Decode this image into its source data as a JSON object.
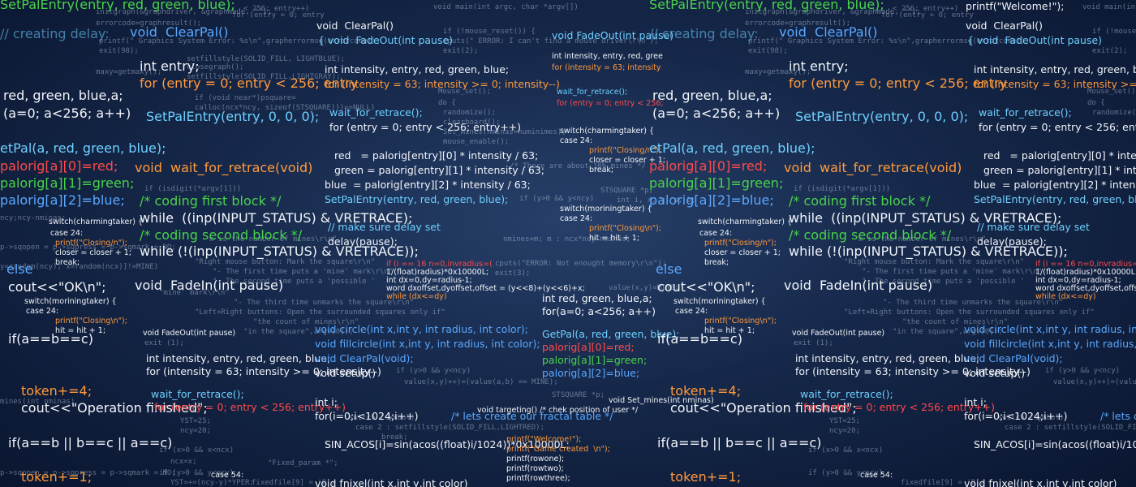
{
  "code": {
    "b01": "SetPalEntry(entry, red, green, blue);",
    "b02": "// creating delay:",
    "b03": "void  ClearPal()",
    "b04": "int entry;",
    "b05": "for (entry = 0; entry < 256; entry",
    "b06": "red, green, blue,a;",
    "b07": "(a=0; a<256; a++)",
    "b08": "SetPalEntry(entry, 0, 0, 0);",
    "b09": "etPal(a, red, green, blue);",
    "b10": "palorig[a][0]=red;",
    "b11": "palorig[a][1]=green;",
    "b12": "palorig[a][2]=blue;",
    "b13": "void  wait_for_retrace(void)",
    "b14": "/* coding first block */",
    "b15": "while  ((inp(INPUT_STATUS) & VRETRACE);",
    "b16": "/* coding second block */",
    "b17": "while (!(inp(INPUT_STATUS) & VRETRACE));",
    "b18": "else",
    "b19": "cout<<\"OK\\n\";",
    "b20": "void  FadeIn(int pause)",
    "b21": "if(a==b==c)",
    "b22": "token+=4;",
    "b23": "cout<<\"Operation finished\";",
    "b24": "if(a==b || b==c || a==c)",
    "b25": "token+=1;",
    "c01": "void  ClearPal()",
    "c02": "{ void  FadeOut(int pause)",
    "c03": "int intensity, entry, red, green, blue;",
    "c04": "for (intensity = 63; intensity >= 0; intensity--)",
    "c05": "wait_for_retrace();",
    "c06": "for (entry = 0; entry < 256; entry++)",
    "c07": "red   = palorig[entry][0] * intensity / 63;",
    "c08": "green = palorig[entry][1] * intensity / 63;",
    "c09": "blue  = palorig[entry][2] * intensity / 63;",
    "c10": "SetPalEntry(entry, red, green, blue);",
    "c11": "// make sure delay set",
    "c12": "delay(pause);",
    "c13": "void circle(int x,int y, int radius, int color);",
    "c14": "void fillcircle(int x,int y, int radius, int color);",
    "c15": "void ClearPal(void);",
    "c16": "void setup()",
    "c17": "int i;",
    "c18": "for(i=0;i<1024;i++)",
    "c19": "SIN_ACOS[i]=sin(acos((float)i/1024))*0x10000L;",
    "c20": "/* lets create our fractal table */",
    "c21": "void fnixel(int x,int y,int color)",
    "m01": "int intensity, entry, red, gree",
    "m02": "for (intensity = 63; intensity",
    "m03": "wait_for_retrace();",
    "m04": "for (entry = 0; entry < 256;",
    "m05": "int red, green, blue,a;",
    "m06": "for(a=0; a<256; a++)",
    "m07": "GetPal(a, red, green, blue);",
    "m08": "palorig[a][0]=red;",
    "m09": "palorig[a][1]=green;",
    "m10": "palorig[a][2]=blue;",
    "s01": "switch(charmingtaker) {",
    "s02": "case 24:",
    "s03": "printf(\"Closing/n\");",
    "s04": "closer = closer + 1;",
    "s05": "break;",
    "s06": "switch(moriningtaker) {",
    "s07": "case 24:",
    "s08": "printf(\"Closing\\n\");",
    "s09": "hit = hit + 1;",
    "s10": "break;",
    "s11": "void FadeOut(int pause)",
    "s12": "int intensity, entry, red, green, blue;",
    "s13": "for (intensity = 63; intensity >= 0; intensity--)",
    "s14": "wait_for_retrace();",
    "s15": "for (entry = 0; entry < 256; entry++)",
    "s16": "if (i == 16 n=0,invradius=(",
    "s17": "1/(float)radius)*0x10000L;",
    "s18": "int dx=0,dy=radius-1;",
    "s19": "word dxoffset,dyoffset,offset = (y<<8)+(y<<6)+x;",
    "s20": "while (dx<=dy)",
    "s21": "void targeting() /* chek position of user */",
    "s22": "printf(\"Welcome!\");",
    "s23": "printf(\"Game created  \\n\");",
    "s24": "printf(rowone);",
    "s25": "printf(rowtwo);",
    "s26": "printf(rowthree);",
    "s27": "void Set_mines(int nminas)",
    "s28": "case 54:",
    "g01": "initgraph(&graphdriver, &graphmode, \"\");",
    "g02": "errorcode=graphresult();",
    "g03": "printf(\" Graphics System Error: %s\\n\",grapherrormsg(errorcode));",
    "g04": "exit(98);",
    "g05": "maxy=getmaxy();",
    "g06": "void main(int argc, char *argv[])",
    "g07": "if (!mouse_reset()) {",
    "g08": "cputs(\" ERROR: I can't find a mouse driver\\r\\n\");",
    "g09": "exit(2);",
    "g10": "Mouse_set();",
    "g11": "do {",
    "g12": "randomize();",
    "g13": "clearboard();",
    "g14": "Set_mines(nminas=numinimes);",
    "g15": "mouse_enable();",
    "g16": "m is the number of mines\\r\\n\"",
    "g17": "\"Right mouse button: Mark the square\\r\\n\"",
    "g18": "\"- The first time puts a 'mine' mark\\r\\n\"",
    "g19": "\"- The second time puts a 'possible '",
    "g20": "\"mine' mark\\r\\n\"",
    "g21": "\"- The third time unmarks the square\\r\\n\"",
    "g22": "\"Left+Right buttons: Open the surrounded squares only if\"",
    "g23": "\"the count of mines\\r\\n\"",
    "g24": "\"in the square\",argv[0]);",
    "g25": "exit (1);",
    "g26": "if (isdigit(*argv[1]))",
    "g27": "cputs(\"ERROR: Not enought memory\\r\\n\");",
    "g28": "exit(3);",
    "g29": "value(x,y)=MINE;",
    "g30": "y=random(ncy); x=random(ncx)]!=MINE)",
    "g31": "p->sqopen = p->sqpress = p->sqmark = NO;",
    "g32": "if (x>0 && x<ncx)",
    "g33": "ncx=x;",
    "g34": "if (y>0 && y<ncy)",
    "g35": "YST=+=(ncy-y)*YPER;",
    "g36": "STSQUARE *p;",
    "g37": "int i, x, y, a, b;",
    "g38": "p->value = p->sqopen = p->sqpress = p->sqmark = NO;",
    "g39": "for (i=ncx*ncy; i>0; i--)",
    "g40": "closegraph();",
    "g41": "setfillstyle(SOLID_FILL, LIGHTBLUE);",
    "g42": "setcolor(LIGHTRED);",
    "g43": "setfillstyle(SOLID_FILL,LIGHTGRAY);",
    "g44": "/* There are about 16% mines */",
    "g45": "YST=25;",
    "g46": "ncy=20;",
    "g47": "if (y>0 && y<ncy)",
    "g48": "value(x,y)++)=(value(a,b) == MINE);",
    "g49": "nmines=m; m : ncx*ncy-nminas;",
    "g50": "if (void near*)psquare=",
    "g51": "calloc(ncx*ncy, sizeof(STSQUARE)))==NULL)",
    "g52": "switch (symbol)",
    "g53": "case 2 : setfillstyle(SOLID_FILL,LIGHTRED);",
    "g54": "break;",
    "g55": "mines(int nminas)",
    "g56": "ncy;ncy-nminas;",
    "g57": "\"Fixed_param *\";",
    "g58": "fixedfile[9] = 'B';"
  }
}
